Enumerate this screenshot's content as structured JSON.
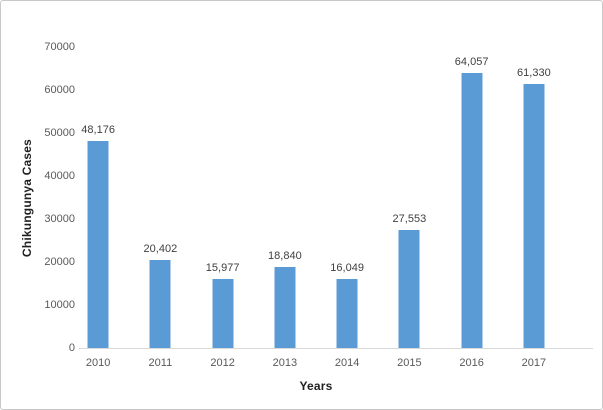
{
  "chart_data": {
    "type": "bar",
    "title": "",
    "categories": [
      "2010",
      "2011",
      "2012",
      "2013",
      "2014",
      "2015",
      "2016",
      "2017"
    ],
    "values": [
      48176,
      20402,
      15977,
      18840,
      16049,
      27553,
      64057,
      61330
    ],
    "value_labels": [
      "48,176",
      "20,402",
      "15,977",
      "18,840",
      "16,049",
      "27,553",
      "64,057",
      "61,330"
    ],
    "xlabel": "Years",
    "ylabel": "Chikungunya Cases",
    "ylim": [
      0,
      70000
    ],
    "y_ticks": [
      0,
      10000,
      20000,
      30000,
      40000,
      50000,
      60000,
      70000
    ],
    "grid": false,
    "legend": false,
    "colors": {
      "bar": "#5B9BD5",
      "tick_label": "#595959",
      "data_label": "#404040",
      "axis_title": "#1F1F1F",
      "axis_line": "#D9D9D9"
    }
  }
}
